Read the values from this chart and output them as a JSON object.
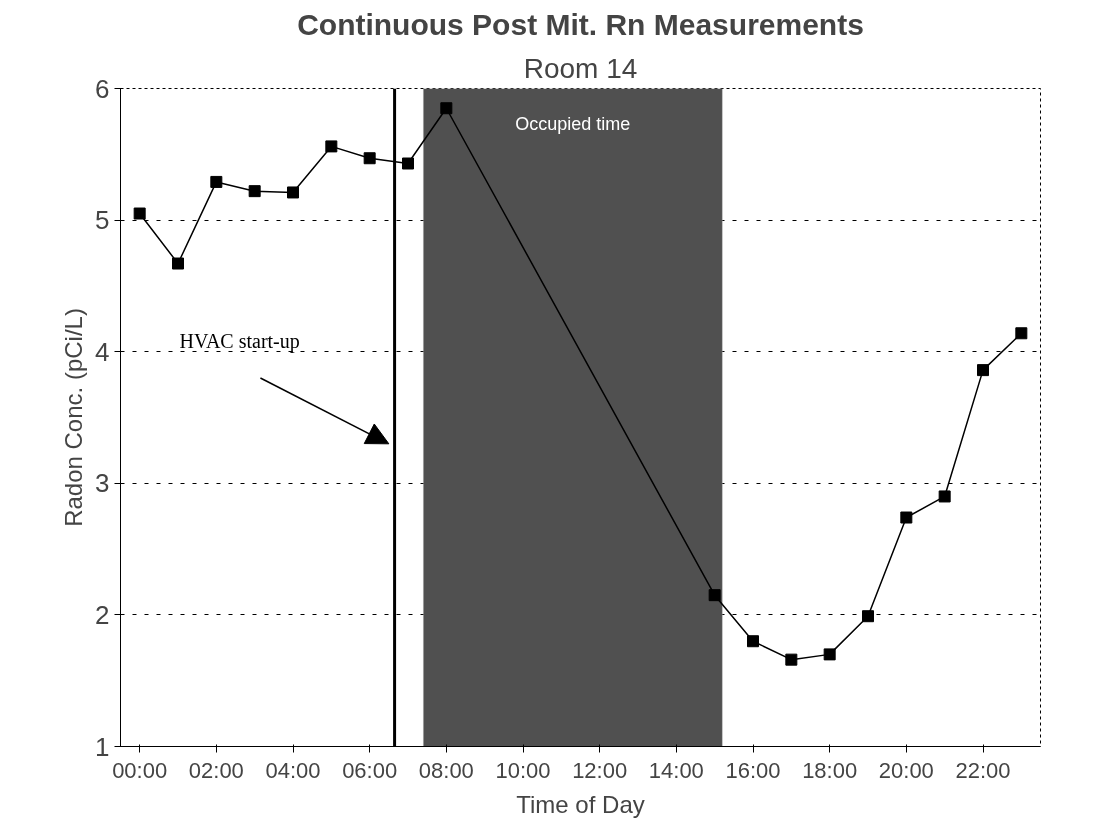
{
  "chart_data": {
    "type": "line",
    "title": "Continuous Post Mit. Rn Measurements",
    "subtitle": "Room 14",
    "xlabel": "Time of Day",
    "ylabel": "Radon Conc. (pCi/L)",
    "x": [
      0,
      1,
      2,
      3,
      4,
      5,
      6,
      7,
      8,
      15,
      16,
      17,
      18,
      19,
      20,
      21,
      22,
      23
    ],
    "series": [
      {
        "color": "#000000",
        "values": [
          5.05,
          4.67,
          5.29,
          5.22,
          5.21,
          5.56,
          5.47,
          5.43,
          5.85,
          2.15,
          1.8,
          1.66,
          1.7,
          1.99,
          2.74,
          2.9,
          3.86,
          4.14
        ]
      }
    ],
    "xlim": [
      -0.5,
      23.5
    ],
    "xticks": [
      {
        "value": 0,
        "label": "00:00"
      },
      {
        "value": 2,
        "label": "02:00"
      },
      {
        "value": 4,
        "label": "04:00"
      },
      {
        "value": 6,
        "label": "06:00"
      },
      {
        "value": 8,
        "label": "08:00"
      },
      {
        "value": 10,
        "label": "10:00"
      },
      {
        "value": 12,
        "label": "12:00"
      },
      {
        "value": 14,
        "label": "14:00"
      },
      {
        "value": 16,
        "label": "16:00"
      },
      {
        "value": 18,
        "label": "18:00"
      },
      {
        "value": 20,
        "label": "20:00"
      },
      {
        "value": 22,
        "label": "22:00"
      }
    ],
    "ylim": [
      1,
      6
    ],
    "yticks": [
      1,
      2,
      3,
      4,
      5,
      6
    ],
    "ref_lines": [
      {
        "axis": "x",
        "value": 6.65,
        "label": "HVAC start-up",
        "color": "#000000"
      }
    ],
    "bands": [
      {
        "axis": "x",
        "from": 7.4,
        "to": 15.2,
        "label": "Occupied time",
        "color": "#505050"
      }
    ],
    "grid": "y",
    "marker": "square",
    "line_style": "solid"
  }
}
